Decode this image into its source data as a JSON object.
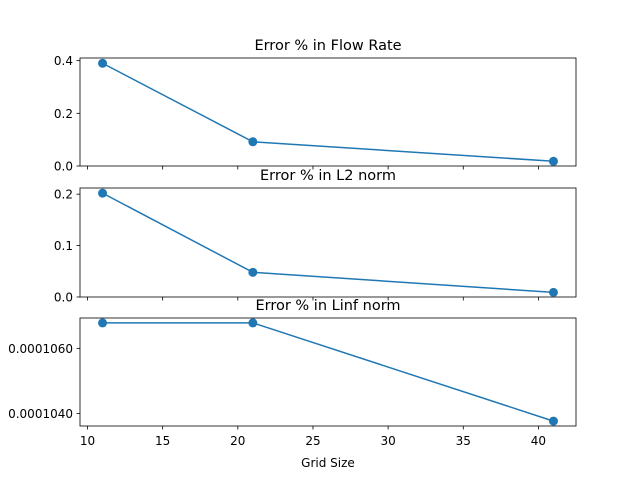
{
  "figure": {
    "xlabel": "Grid Size",
    "xticks": [
      10,
      15,
      20,
      25,
      30,
      35,
      40
    ],
    "xlim": [
      9.5,
      42.5
    ]
  },
  "chart_data": [
    {
      "type": "line",
      "title": "Error % in Flow Rate",
      "xlabel": "",
      "ylabel": "",
      "color": "#1f77b4",
      "marker": "circle",
      "x": [
        11,
        21,
        41
      ],
      "y": [
        0.39,
        0.092,
        0.018
      ],
      "ylim": [
        0,
        0.41
      ],
      "yticks": [
        0.0,
        0.2,
        0.4
      ],
      "ytick_labels": [
        "0.0",
        "0.2",
        "0.4"
      ],
      "show_xtick_labels": false,
      "grid": false
    },
    {
      "type": "line",
      "title": "Error % in L2 norm",
      "xlabel": "",
      "ylabel": "",
      "color": "#1f77b4",
      "marker": "circle",
      "x": [
        11,
        21,
        41
      ],
      "y": [
        0.202,
        0.048,
        0.009
      ],
      "ylim": [
        0,
        0.212
      ],
      "yticks": [
        0.0,
        0.1,
        0.2
      ],
      "ytick_labels": [
        "0.0",
        "0.1",
        "0.2"
      ],
      "show_xtick_labels": false,
      "grid": false
    },
    {
      "type": "line",
      "title": "Error % in Linf norm",
      "xlabel": "Grid Size",
      "ylabel": "",
      "color": "#1f77b4",
      "marker": "circle",
      "x": [
        11,
        21,
        41
      ],
      "y": [
        0.00010678,
        0.00010678,
        0.00010377
      ],
      "ylim": [
        0.00010362,
        0.00010693
      ],
      "yticks": [
        0.000104,
        0.000106
      ],
      "ytick_labels": [
        "0.0001040",
        "0.0001060"
      ],
      "show_xtick_labels": true,
      "grid": false
    }
  ]
}
